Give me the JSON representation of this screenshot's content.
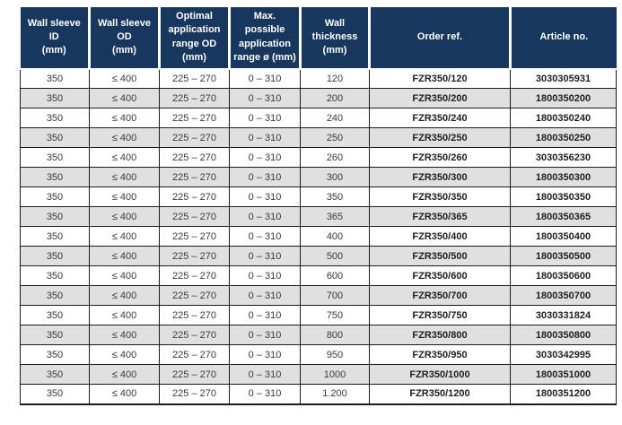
{
  "table": {
    "columns": [
      {
        "id": "wall-sleeve-id",
        "label": "Wall sleeve ID\n(mm)",
        "bold": false
      },
      {
        "id": "wall-sleeve-od",
        "label": "Wall sleeve OD\n(mm)",
        "bold": false
      },
      {
        "id": "optimal-range-od",
        "label": "Optimal\napplication\nrange OD\n(mm)",
        "bold": false
      },
      {
        "id": "max-range",
        "label": "Max. possible\napplication\nrange ø (mm)",
        "bold": false
      },
      {
        "id": "wall-thickness",
        "label": "Wall thickness\n(mm)",
        "bold": false
      },
      {
        "id": "order-ref",
        "label": "Order ref.",
        "bold": true
      },
      {
        "id": "article-no",
        "label": "Article no.",
        "bold": true
      }
    ],
    "rows": [
      [
        "350",
        "≤ 400",
        "225 – 270",
        "0 – 310",
        "120",
        "FZR350/120",
        "3030305931"
      ],
      [
        "350",
        "≤ 400",
        "225 – 270",
        "0 – 310",
        "200",
        "FZR350/200",
        "1800350200"
      ],
      [
        "350",
        "≤ 400",
        "225 – 270",
        "0 – 310",
        "240",
        "FZR350/240",
        "1800350240"
      ],
      [
        "350",
        "≤ 400",
        "225 – 270",
        "0 – 310",
        "250",
        "FZR350/250",
        "1800350250"
      ],
      [
        "350",
        "≤ 400",
        "225 – 270",
        "0 – 310",
        "260",
        "FZR350/260",
        "3030356230"
      ],
      [
        "350",
        "≤ 400",
        "225 – 270",
        "0 – 310",
        "300",
        "FZR350/300",
        "1800350300"
      ],
      [
        "350",
        "≤ 400",
        "225 – 270",
        "0 – 310",
        "350",
        "FZR350/350",
        "1800350350"
      ],
      [
        "350",
        "≤ 400",
        "225 – 270",
        "0 – 310",
        "365",
        "FZR350/365",
        "1800350365"
      ],
      [
        "350",
        "≤ 400",
        "225 – 270",
        "0 – 310",
        "400",
        "FZR350/400",
        "1800350400"
      ],
      [
        "350",
        "≤ 400",
        "225 – 270",
        "0 – 310",
        "500",
        "FZR350/500",
        "1800350500"
      ],
      [
        "350",
        "≤ 400",
        "225 – 270",
        "0 – 310",
        "600",
        "FZR350/600",
        "1800350600"
      ],
      [
        "350",
        "≤ 400",
        "225 – 270",
        "0 – 310",
        "700",
        "FZR350/700",
        "1800350700"
      ],
      [
        "350",
        "≤ 400",
        "225 – 270",
        "0 – 310",
        "750",
        "FZR350/750",
        "3030331824"
      ],
      [
        "350",
        "≤ 400",
        "225 – 270",
        "0 – 310",
        "800",
        "FZR350/800",
        "1800350800"
      ],
      [
        "350",
        "≤ 400",
        "225 – 270",
        "0 – 310",
        "950",
        "FZR350/950",
        "3030342995"
      ],
      [
        "350",
        "≤ 400",
        "225 – 270",
        "0 – 310",
        "1000",
        "FZR350/1000",
        "1800351000"
      ],
      [
        "350",
        "≤ 400",
        "225 – 270",
        "0 – 310",
        "1.200",
        "FZR350/1200",
        "1800351200"
      ]
    ]
  },
  "colors": {
    "header_bg": "#17375e",
    "header_text": "#ffffff",
    "alt_row_bg": "#e0e0e0",
    "grid_border": "#1a1a1a",
    "cell_text": "#3a3a3a",
    "bold_text": "#1f1f1f"
  }
}
